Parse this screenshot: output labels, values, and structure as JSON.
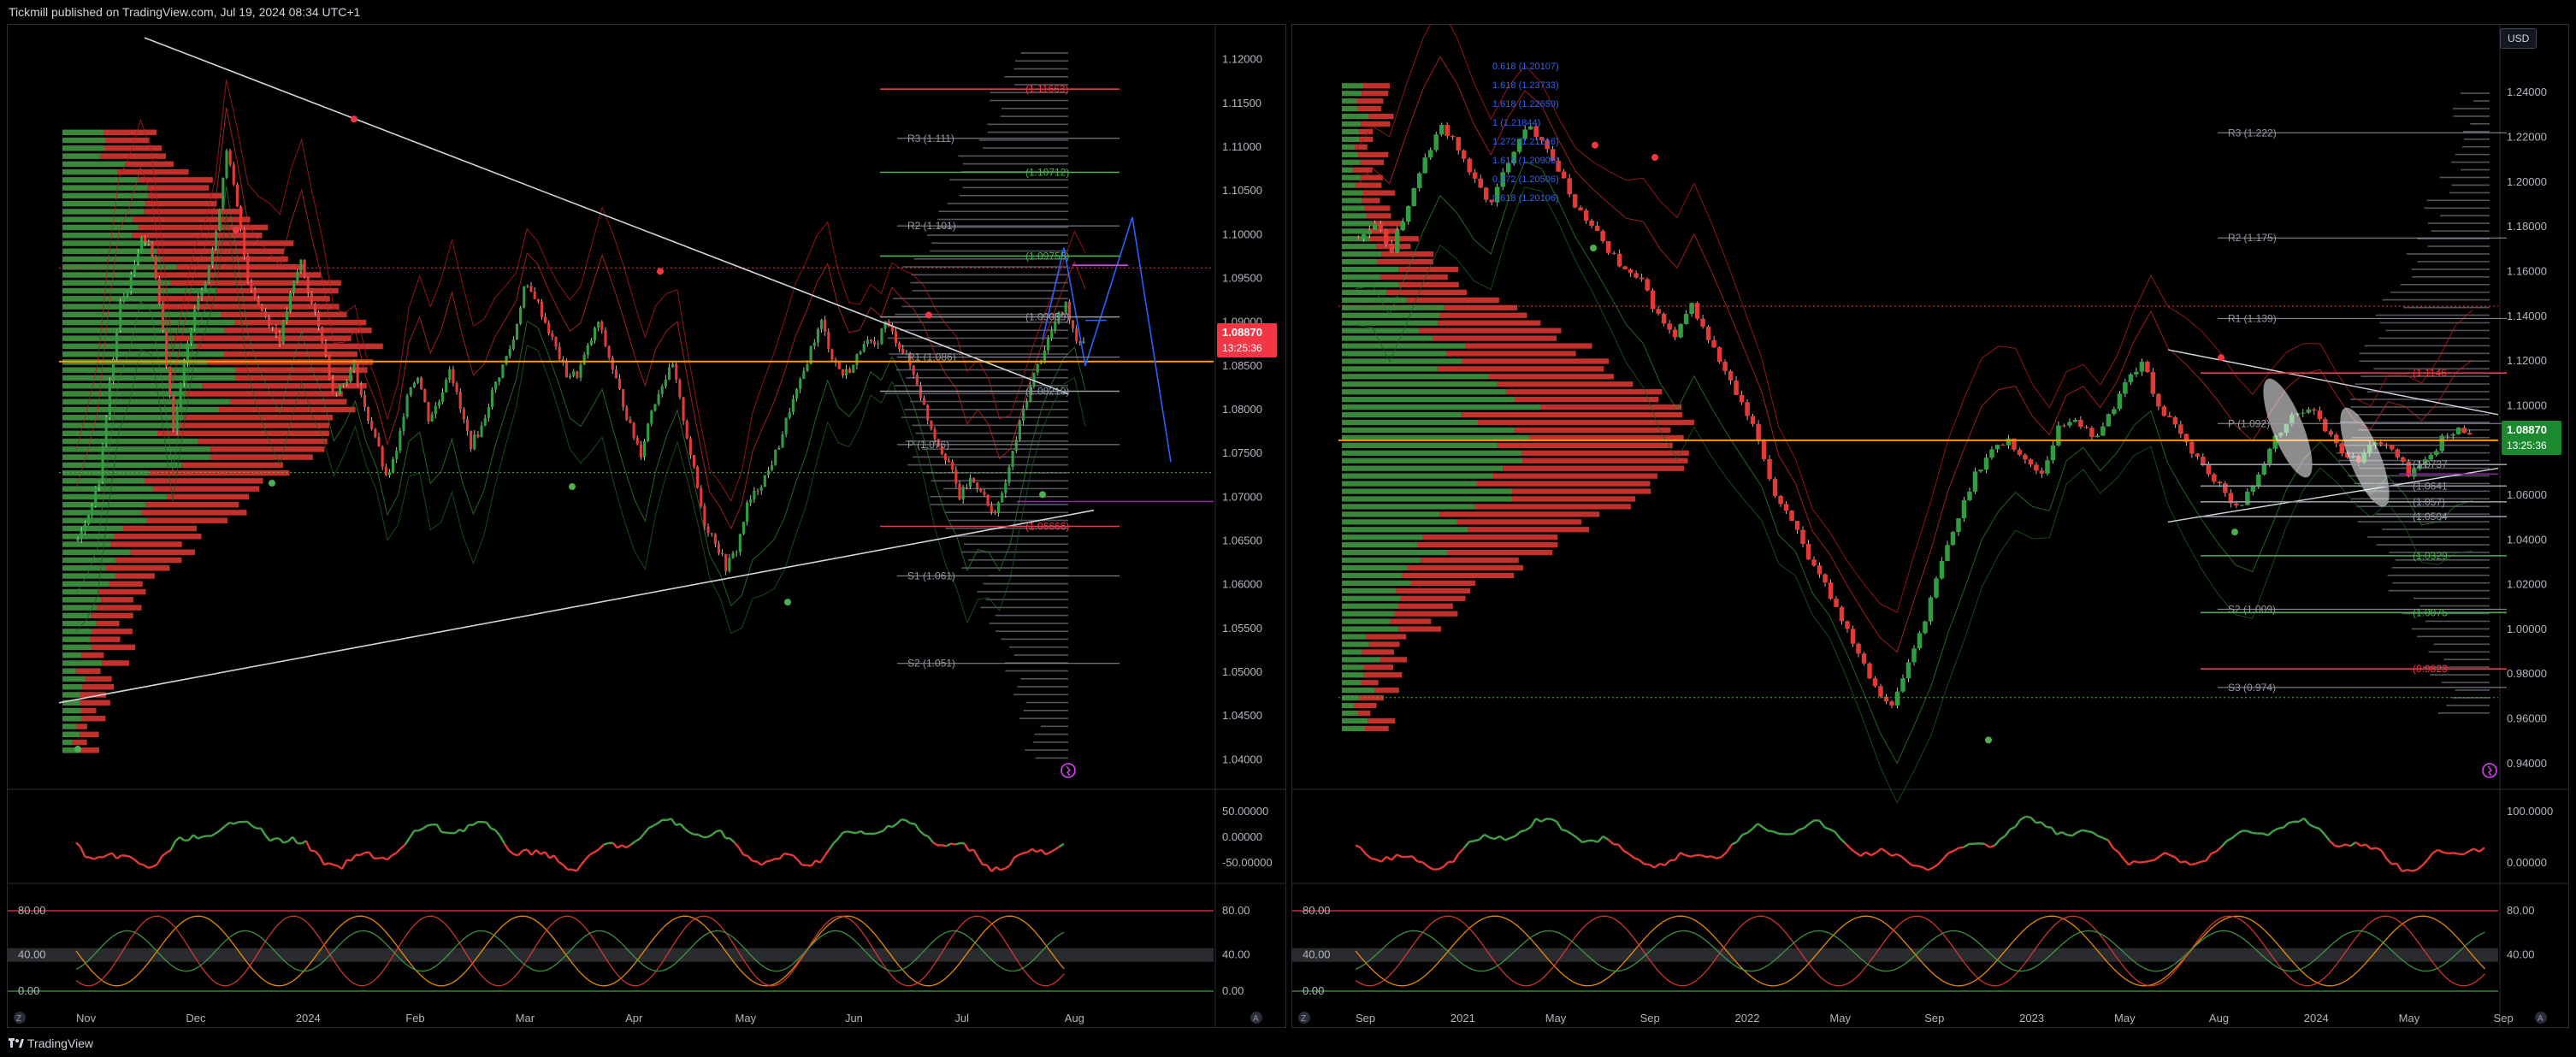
{
  "header": {
    "publisher": "Tickmill published on TradingView.com, Jul 19, 2024 08:34 UTC+1"
  },
  "footer": {
    "brand": "TradingView"
  },
  "colors": {
    "bull": "#2e7d32",
    "bear": "#e53935",
    "orange": "#ff9800",
    "green": "#4caf50",
    "red": "#f23645",
    "grid": "#2a2e39"
  },
  "left": {
    "price_ticks": [
      "1.12000",
      "1.11500",
      "1.11000",
      "1.10500",
      "1.10000",
      "1.09500",
      "1.09000",
      "1.08500",
      "1.08000",
      "1.07500",
      "1.07000",
      "1.06500",
      "1.06000",
      "1.05500",
      "1.05000",
      "1.04500",
      "1.04000"
    ],
    "time_ticks": [
      "Nov",
      "Dec",
      "2024",
      "Feb",
      "Mar",
      "Apr",
      "May",
      "Jun",
      "Jul",
      "Aug"
    ],
    "last_price": "1.08870",
    "countdown": "13:25:36",
    "levels": [
      {
        "label": "(1.11663)",
        "color": "#f23645"
      },
      {
        "label": "R3 (1.111)",
        "color": "#9598a1"
      },
      {
        "label": "(1.10712)",
        "color": "#4caf50"
      },
      {
        "label": "R2 (1.101)",
        "color": "#9598a1"
      },
      {
        "label": "(1.09755)",
        "color": "#4caf50"
      },
      {
        "label": "(1.09059)",
        "color": "#9598a1"
      },
      {
        "label": "R1 (1.086)",
        "color": "#9598a1"
      },
      {
        "label": "(1.08210)",
        "color": "#9598a1"
      },
      {
        "label": "P (1.076)",
        "color": "#9598a1"
      },
      {
        "label": "(1.06666)",
        "color": "#f23645"
      },
      {
        "label": "S1 (1.061)",
        "color": "#9598a1"
      },
      {
        "label": "S2 (1.051)",
        "color": "#9598a1"
      }
    ],
    "osc1_ticks": [
      "50.00000",
      "0.00000",
      "-50.00000"
    ],
    "osc2_ticks_left": [
      "80.00",
      "40.00",
      "0.00"
    ],
    "osc2_ticks_right": [
      "80.00",
      "40.00",
      "0.00"
    ]
  },
  "right": {
    "currency": "USD",
    "price_ticks": [
      "1.24000",
      "1.22000",
      "1.20000",
      "1.18000",
      "1.16000",
      "1.14000",
      "1.12000",
      "1.10000",
      "1.08000",
      "1.06000",
      "1.04000",
      "1.02000",
      "1.00000",
      "0.98000",
      "0.96000",
      "0.94000"
    ],
    "time_ticks": [
      "Sep",
      "2021",
      "May",
      "Sep",
      "2022",
      "May",
      "Sep",
      "2023",
      "May",
      "Aug",
      "2024",
      "May",
      "Sep"
    ],
    "last_price": "1.08870",
    "countdown": "13:25:36",
    "fib_labels": [
      "0.618 (1.20107)",
      "1.618 (1.23733)",
      "1.618 (1.22659)",
      "1 (1.21844)",
      "1.272 (1.21216)",
      "1.618 (1.20906)",
      "0.272 (1.20506)",
      "0.618 (1.20106)"
    ],
    "levels": [
      {
        "label": "R3 (1.222)",
        "color": "#9598a1"
      },
      {
        "label": "R2 (1.175)",
        "color": "#9598a1"
      },
      {
        "label": "R1 (1.139)",
        "color": "#9598a1"
      },
      {
        "label": "(1.1146",
        "color": "#f23645"
      },
      {
        "label": "P (1.092)",
        "color": "#9598a1"
      },
      {
        "label": "(1.0737",
        "color": "#9598a1"
      },
      {
        "label": "(1.0641",
        "color": "#9598a1"
      },
      {
        "label": "(1.057)",
        "color": "#9598a1"
      },
      {
        "label": "(1.0504",
        "color": "#9598a1"
      },
      {
        "label": "(1.0329",
        "color": "#4caf50"
      },
      {
        "label": "S2 (1.009)",
        "color": "#9598a1"
      },
      {
        "label": "(1.0075",
        "color": "#4caf50"
      },
      {
        "label": "(0.9823",
        "color": "#f23645"
      },
      {
        "label": "S3 (0.974)",
        "color": "#9598a1"
      }
    ],
    "osc1_ticks": [
      "100.0000",
      "0.00000"
    ],
    "osc2_ticks_left": [
      "80.00",
      "40.00",
      "0.00"
    ],
    "osc2_ticks_right": [
      "80.00",
      "40.00"
    ]
  },
  "chart_data": [
    {
      "type": "line",
      "axis_ticks_y": [
        "1.12000",
        "1.11500",
        "1.11000",
        "1.10500",
        "1.10000",
        "1.09500",
        "1.09000",
        "1.08500",
        "1.08000",
        "1.07500",
        "1.07000",
        "1.06500",
        "1.06000",
        "1.05500",
        "1.05000",
        "1.04500",
        "1.04000"
      ],
      "x_labels": [
        "Nov",
        "Dec",
        "2024",
        "Feb",
        "Mar",
        "Apr",
        "May",
        "Jun",
        "Jul",
        "Aug"
      ],
      "ylim": [
        1.037,
        1.123
      ],
      "series": [
        {
          "values": [
            1.065,
            1.068,
            1.072,
            1.083,
            1.092,
            1.095,
            1.1,
            1.098,
            1.089,
            1.078,
            1.085,
            1.092,
            1.095,
            1.1,
            1.11,
            1.103,
            1.095,
            1.092,
            1.09,
            1.088,
            1.093,
            1.097,
            1.092,
            1.088,
            1.082,
            1.083,
            1.085,
            1.08,
            1.077,
            1.072,
            1.075,
            1.082,
            1.084,
            1.079,
            1.081,
            1.085,
            1.08,
            1.076,
            1.078,
            1.082,
            1.085,
            1.088,
            1.094,
            1.093,
            1.09,
            1.087,
            1.084,
            1.084,
            1.087,
            1.09,
            1.086,
            1.082,
            1.078,
            1.075,
            1.08,
            1.083,
            1.085,
            1.079,
            1.073,
            1.067,
            1.065,
            1.062,
            1.064,
            1.069,
            1.071,
            1.073,
            1.076,
            1.08,
            1.083,
            1.087,
            1.09,
            1.086,
            1.084,
            1.085,
            1.088,
            1.087,
            1.09,
            1.088,
            1.086,
            1.083,
            1.079,
            1.076,
            1.074,
            1.07,
            1.072,
            1.071,
            1.068,
            1.07,
            1.075,
            1.08,
            1.084,
            1.087,
            1.09,
            1.092,
            1.088
          ]
        }
      ],
      "price_levels": [
        1.11663,
        1.111,
        1.10712,
        1.101,
        1.09755,
        1.09059,
        1.086,
        1.0821,
        1.076,
        1.06666,
        1.061,
        1.051
      ],
      "last": 1.0887
    },
    {
      "type": "line",
      "axis_ticks_y": [
        "1.24000",
        "1.22000",
        "1.20000",
        "1.18000",
        "1.16000",
        "1.14000",
        "1.12000",
        "1.10000",
        "1.08000",
        "1.06000",
        "1.04000",
        "1.02000",
        "1.00000",
        "0.98000",
        "0.96000",
        "0.94000"
      ],
      "x_labels": [
        "Sep",
        "2021",
        "May",
        "Sep",
        "2022",
        "May",
        "Sep",
        "2023",
        "May",
        "Aug",
        "2024",
        "May",
        "Sep"
      ],
      "ylim": [
        0.93,
        1.255
      ],
      "series": [
        {
          "values": [
            1.175,
            1.18,
            1.17,
            1.19,
            1.21,
            1.225,
            1.215,
            1.2,
            1.19,
            1.21,
            1.225,
            1.22,
            1.205,
            1.19,
            1.18,
            1.17,
            1.16,
            1.155,
            1.14,
            1.13,
            1.145,
            1.13,
            1.115,
            1.1,
            1.085,
            1.06,
            1.05,
            1.03,
            1.02,
            1.005,
            0.99,
            0.975,
            0.965,
            0.985,
            1.005,
            1.03,
            1.05,
            1.07,
            1.08,
            1.085,
            1.075,
            1.07,
            1.09,
            1.095,
            1.085,
            1.095,
            1.11,
            1.12,
            1.1,
            1.09,
            1.08,
            1.07,
            1.06,
            1.055,
            1.07,
            1.085,
            1.095,
            1.1,
            1.09,
            1.08,
            1.075,
            1.085,
            1.08,
            1.07,
            1.075,
            1.085,
            1.089
          ]
        }
      ],
      "price_levels": [
        1.222,
        1.175,
        1.139,
        1.1146,
        1.092,
        1.0737,
        1.0641,
        1.057,
        1.0504,
        1.0329,
        1.009,
        1.0075,
        0.9823,
        0.974
      ],
      "last": 1.0887
    }
  ]
}
